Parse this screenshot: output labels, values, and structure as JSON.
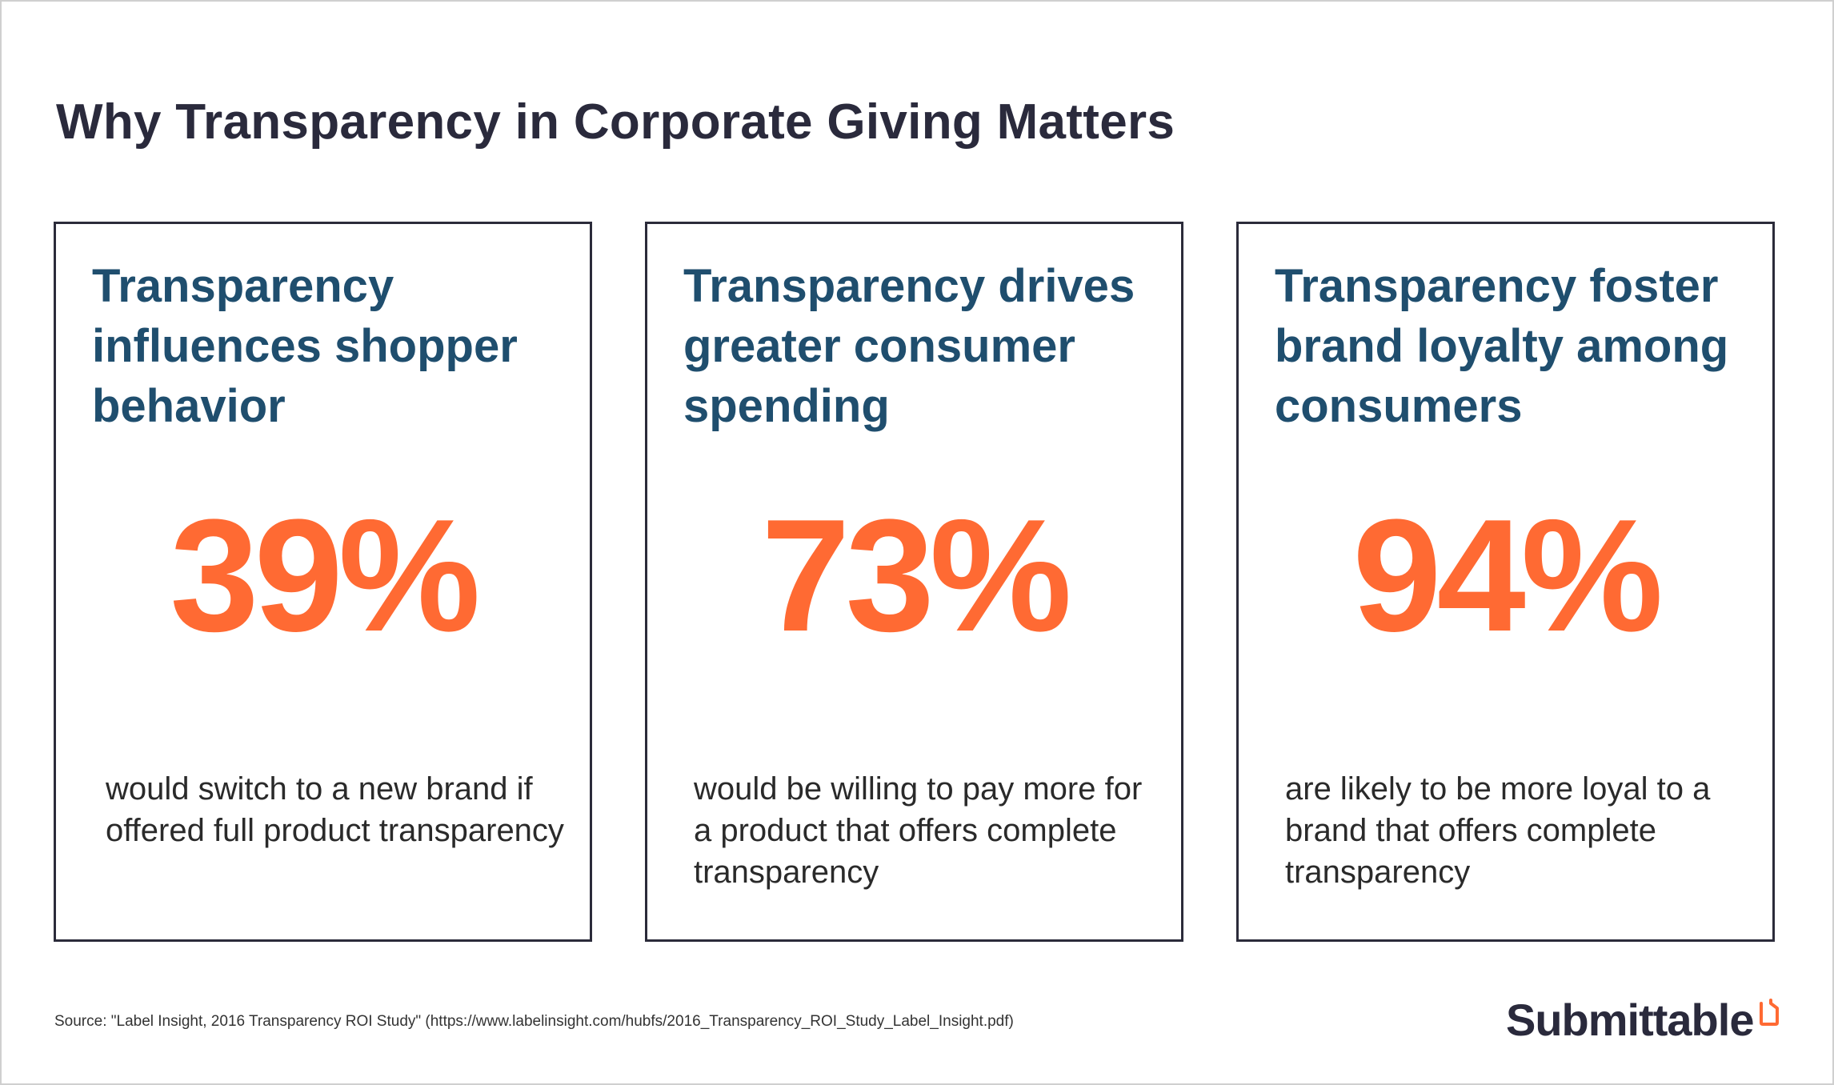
{
  "title": "Why Transparency in Corporate Giving Matters",
  "cards": [
    {
      "heading": "Transparency influences shopper behavior",
      "stat": "39%",
      "description": "would switch to a new brand if offered full product transparency"
    },
    {
      "heading": "Transparency drives greater consumer spending",
      "stat": "73%",
      "description": "would be willing to pay more for a product that offers complete transparency"
    },
    {
      "heading": "Transparency foster brand loyalty among consumers",
      "stat": "94%",
      "description": "are likely to be more loyal to a brand that offers complete transparency"
    }
  ],
  "source": "Source: \"Label Insight, 2016 Transparency ROI Study\" (https://www.labelinsight.com/hubfs/2016_Transparency_ROI_Study_Label_Insight.pdf)",
  "logo": {
    "text": "Submittable",
    "icon": "submittable-logo-icon"
  },
  "colors": {
    "accent": "#ff6a33",
    "heading": "#1f4e6e",
    "title": "#2a2a3c",
    "border": "#2b2b3a"
  }
}
